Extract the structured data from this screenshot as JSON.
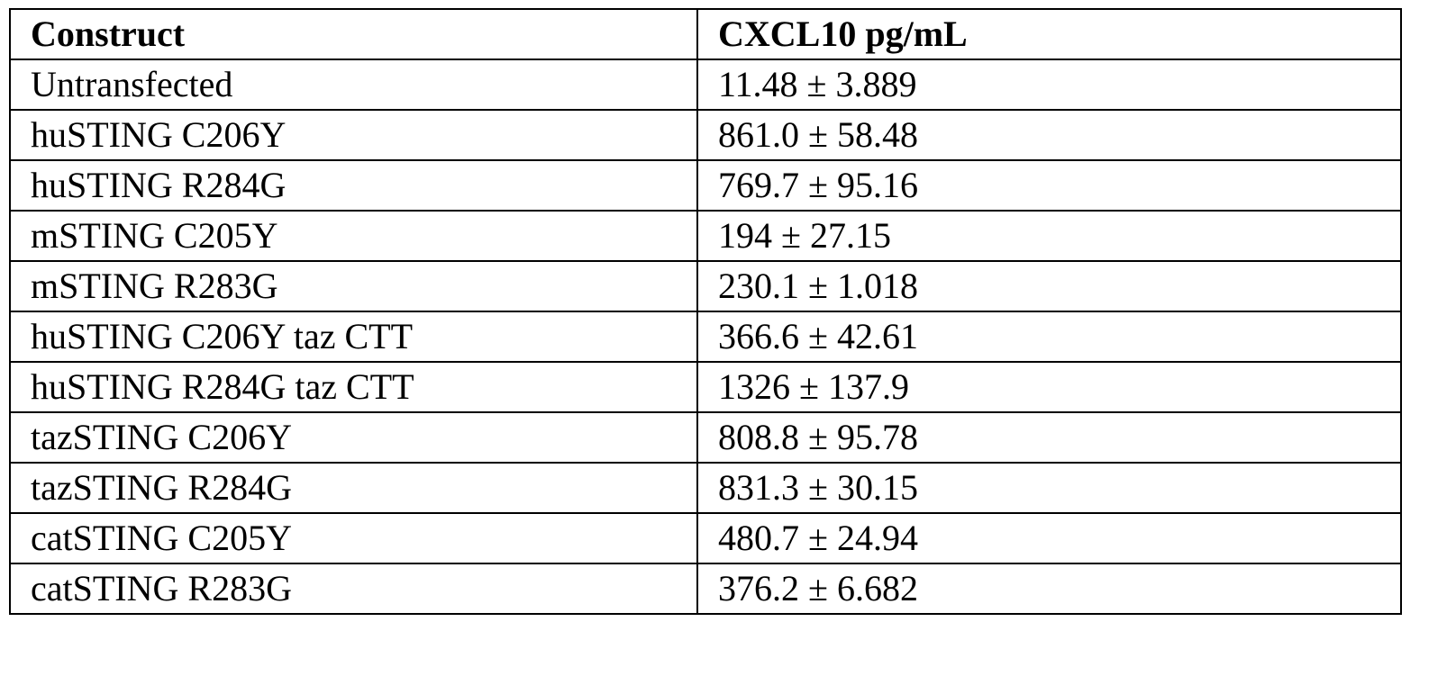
{
  "table": {
    "headers": [
      "Construct",
      "CXCL10 pg/mL"
    ],
    "rows": [
      [
        "Untransfected",
        "11.48 ± 3.889"
      ],
      [
        "huSTING C206Y",
        "861.0 ± 58.48"
      ],
      [
        "huSTING R284G",
        "769.7 ± 95.16"
      ],
      [
        "mSTING C205Y",
        "194 ± 27.15"
      ],
      [
        "mSTING R283G",
        "230.1 ± 1.018"
      ],
      [
        "huSTING C206Y taz CTT",
        "366.6 ± 42.61"
      ],
      [
        "huSTING R284G taz CTT",
        "1326 ± 137.9"
      ],
      [
        "tazSTING C206Y",
        "808.8 ± 95.78"
      ],
      [
        "tazSTING R284G",
        "831.3 ± 30.15"
      ],
      [
        "catSTING C205Y",
        "480.7 ± 24.94"
      ],
      [
        "catSTING R283G",
        "376.2 ± 6.682"
      ]
    ]
  }
}
